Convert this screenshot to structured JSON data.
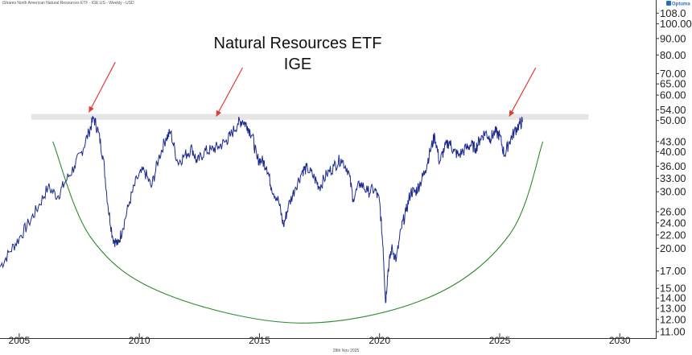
{
  "header": {
    "series_caption": "iShares North American Natural Resources ETF - IGE.US - Weekly - USD",
    "brand": "Optuma"
  },
  "footer": {
    "date_caption": "28th Nov 2025"
  },
  "colors": {
    "price": "#1c2a8f",
    "arrow": "#e53935",
    "bowl": "#2e8b2e",
    "band": "#e6e6e6",
    "axis": "#333333"
  },
  "chart_data": {
    "type": "line",
    "title": "Natural Resources ETF",
    "subtitle": "IGE",
    "xlabel": "",
    "ylabel": "",
    "y_scale": "log",
    "ylim": [
      10.5,
      112
    ],
    "xlim": [
      2004.2,
      2031.5
    ],
    "y_ticks": [
      108.0,
      100.0,
      90.0,
      80.0,
      70.0,
      65.0,
      60.0,
      54.0,
      50.0,
      43.0,
      40.0,
      36.0,
      33.0,
      30.0,
      26.0,
      24.0,
      22.0,
      20.0,
      17.0,
      15.0,
      14.0,
      13.0,
      12.0,
      11.0
    ],
    "y_tick_labels": [
      "108.0",
      "100.00",
      "90.00",
      "80.00",
      "70.00",
      "65.00",
      "60.00",
      "54.00",
      "50.00",
      "43.00",
      "40.00",
      "36.00",
      "33.00",
      "30.00",
      "26.00",
      "24.00",
      "22.00",
      "20.00",
      "17.00",
      "15.00",
      "14.00",
      "13.00",
      "12.00",
      "11.00"
    ],
    "x_ticks": [
      "2005",
      "2010",
      "2015",
      "2020",
      "2025",
      "2030"
    ],
    "series": [
      {
        "values": [
          [
            2004.2,
            17.5
          ],
          [
            2004.6,
            19.5
          ],
          [
            2005.0,
            21.5
          ],
          [
            2005.4,
            24.0
          ],
          [
            2005.8,
            27.0
          ],
          [
            2006.2,
            31.0
          ],
          [
            2006.6,
            29.0
          ],
          [
            2006.9,
            32.0
          ],
          [
            2007.3,
            36.0
          ],
          [
            2007.6,
            40.0
          ],
          [
            2007.9,
            46.0
          ],
          [
            2008.1,
            51.0
          ],
          [
            2008.3,
            46.0
          ],
          [
            2008.5,
            38.0
          ],
          [
            2008.7,
            27.0
          ],
          [
            2008.9,
            21.5
          ],
          [
            2009.1,
            20.5
          ],
          [
            2009.3,
            23.0
          ],
          [
            2009.6,
            28.0
          ],
          [
            2009.9,
            33.0
          ],
          [
            2010.2,
            35.0
          ],
          [
            2010.5,
            31.0
          ],
          [
            2010.8,
            38.0
          ],
          [
            2011.1,
            44.0
          ],
          [
            2011.3,
            46.0
          ],
          [
            2011.6,
            37.0
          ],
          [
            2011.9,
            39.0
          ],
          [
            2012.2,
            41.0
          ],
          [
            2012.4,
            37.0
          ],
          [
            2012.7,
            40.0
          ],
          [
            2013.0,
            40.5
          ],
          [
            2013.3,
            41.5
          ],
          [
            2013.6,
            43.0
          ],
          [
            2013.8,
            45.0
          ],
          [
            2014.1,
            49.0
          ],
          [
            2014.3,
            50.0
          ],
          [
            2014.5,
            48.0
          ],
          [
            2014.7,
            45.0
          ],
          [
            2014.9,
            38.0
          ],
          [
            2015.1,
            37.5
          ],
          [
            2015.3,
            36.0
          ],
          [
            2015.5,
            31.0
          ],
          [
            2015.8,
            28.0
          ],
          [
            2016.0,
            23.5
          ],
          [
            2016.2,
            27.0
          ],
          [
            2016.5,
            31.0
          ],
          [
            2016.8,
            35.0
          ],
          [
            2017.0,
            35.5
          ],
          [
            2017.3,
            33.0
          ],
          [
            2017.5,
            31.0
          ],
          [
            2017.8,
            34.0
          ],
          [
            2018.1,
            36.0
          ],
          [
            2018.4,
            38.0
          ],
          [
            2018.7,
            35.0
          ],
          [
            2018.9,
            28.5
          ],
          [
            2019.2,
            32.0
          ],
          [
            2019.5,
            30.0
          ],
          [
            2019.8,
            30.5
          ],
          [
            2020.0,
            28.0
          ],
          [
            2020.15,
            20.0
          ],
          [
            2020.25,
            13.5
          ],
          [
            2020.35,
            17.0
          ],
          [
            2020.5,
            20.0
          ],
          [
            2020.7,
            18.5
          ],
          [
            2020.9,
            23.0
          ],
          [
            2021.1,
            26.0
          ],
          [
            2021.3,
            30.0
          ],
          [
            2021.5,
            30.0
          ],
          [
            2021.7,
            32.0
          ],
          [
            2021.9,
            35.0
          ],
          [
            2022.1,
            40.0
          ],
          [
            2022.3,
            45.0
          ],
          [
            2022.5,
            37.0
          ],
          [
            2022.7,
            41.0
          ],
          [
            2022.9,
            43.0
          ],
          [
            2023.1,
            40.0
          ],
          [
            2023.3,
            39.0
          ],
          [
            2023.6,
            41.0
          ],
          [
            2023.8,
            42.0
          ],
          [
            2024.0,
            41.0
          ],
          [
            2024.2,
            44.0
          ],
          [
            2024.4,
            46.0
          ],
          [
            2024.6,
            44.0
          ],
          [
            2024.8,
            46.0
          ],
          [
            2025.0,
            45.0
          ],
          [
            2025.2,
            39.0
          ],
          [
            2025.4,
            43.0
          ],
          [
            2025.6,
            46.0
          ],
          [
            2025.8,
            48.5
          ],
          [
            2025.95,
            49.5
          ]
        ]
      }
    ],
    "annotations": {
      "resistance_band": {
        "y": 51.3,
        "x_from": 2005.5,
        "x_to": 2028.7
      },
      "arrows": [
        {
          "from": [
            2009.0,
            76.0
          ],
          "to": [
            2007.9,
            53.0
          ]
        },
        {
          "from": [
            2014.3,
            73.0
          ],
          "to": [
            2013.2,
            51.5
          ]
        },
        {
          "from": [
            2026.5,
            73.0
          ],
          "to": [
            2025.4,
            51.5
          ]
        }
      ],
      "bowl": {
        "points": [
          [
            2006.4,
            43.0
          ],
          [
            2008.0,
            21.5
          ],
          [
            2011.0,
            14.5
          ],
          [
            2016.6,
            11.7
          ],
          [
            2022.0,
            14.0
          ],
          [
            2025.4,
            22.0
          ],
          [
            2026.8,
            43.0
          ]
        ]
      }
    }
  }
}
